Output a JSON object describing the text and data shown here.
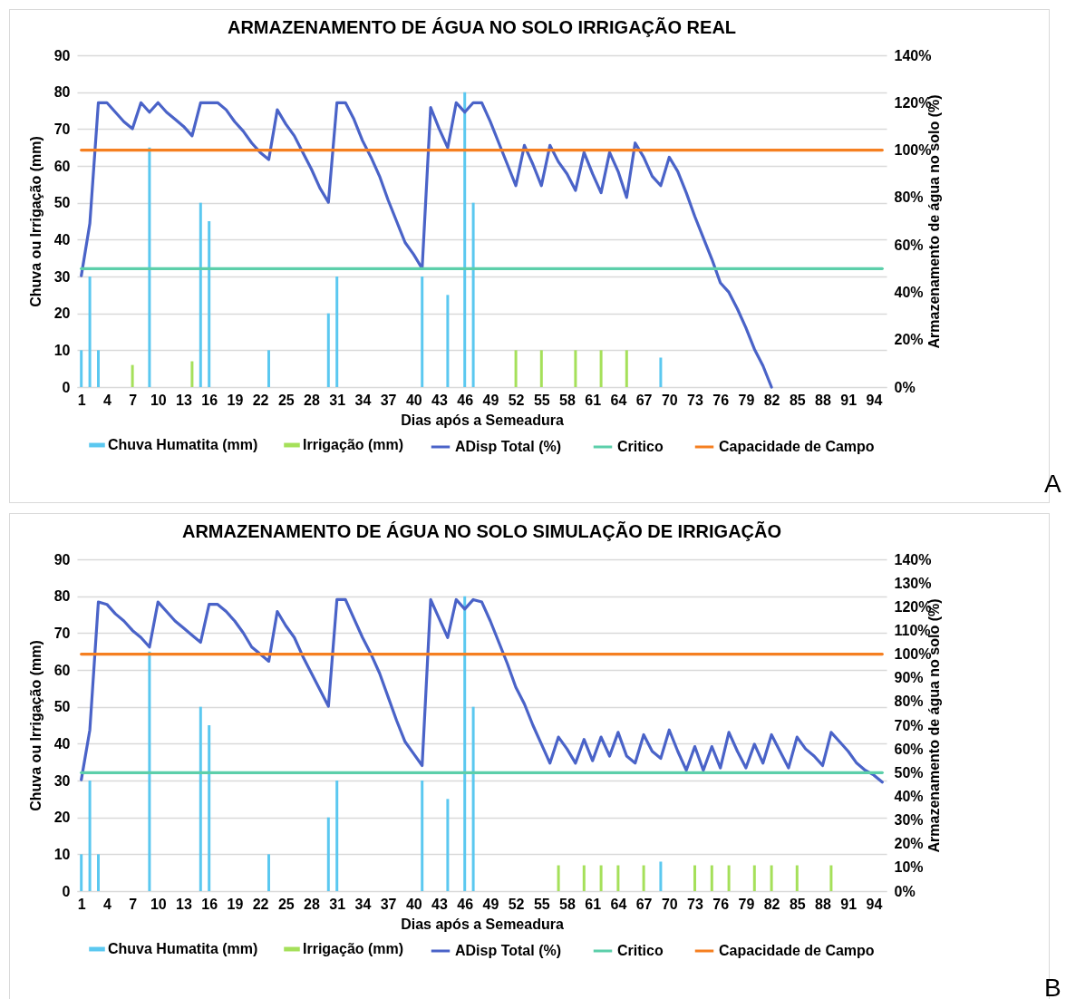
{
  "chart_data": [
    {
      "type": "bar",
      "title": "ARMAZENAMENTO DE ÁGUA  NO SOLO IRRIGAÇÃO REAL",
      "xlabel": "Dias após a Semeadura",
      "ylabel": "Chuva ou Irrigação (mm)",
      "y2label": "Armazenamento de água no solo (%)",
      "xlim": [
        0.5,
        95.5
      ],
      "xticks": [
        1,
        4,
        7,
        10,
        13,
        16,
        19,
        22,
        25,
        28,
        31,
        34,
        37,
        40,
        43,
        46,
        49,
        52,
        55,
        58,
        61,
        64,
        67,
        70,
        73,
        76,
        79,
        82,
        85,
        88,
        91,
        94
      ],
      "ylim": [
        0,
        90
      ],
      "yticks": [
        0,
        10,
        20,
        30,
        40,
        50,
        60,
        70,
        80,
        90
      ],
      "y2lim": [
        0,
        140
      ],
      "y2ticks": [
        {
          "value": 0,
          "label": "0%"
        },
        {
          "value": 20,
          "label": "20%"
        },
        {
          "value": 40,
          "label": "40%"
        },
        {
          "value": 60,
          "label": "60%"
        },
        {
          "value": 80,
          "label": "80%"
        },
        {
          "value": 100,
          "label": "100%"
        },
        {
          "value": 120,
          "label": "120%"
        },
        {
          "value": 140,
          "label": "140%"
        }
      ],
      "grid": "y",
      "legend": "bottom",
      "annotations": [
        "A"
      ],
      "series": [
        {
          "name": "Chuva Humatita (mm)",
          "type": "bar",
          "color": "#5bc8f0",
          "x": [
            1,
            2,
            3,
            9,
            15,
            16,
            23,
            30,
            31,
            41,
            44,
            46,
            47,
            69
          ],
          "values": [
            10,
            30,
            10,
            65,
            50,
            45,
            10,
            20,
            30,
            30,
            25,
            80,
            50,
            8
          ]
        },
        {
          "name": "Irrigação (mm)",
          "type": "bar",
          "color": "#a5e05a",
          "x": [
            7,
            14,
            52,
            55,
            59,
            62,
            65
          ],
          "values": [
            6,
            7,
            10,
            10,
            10,
            10,
            10
          ]
        },
        {
          "name": "ADisp Total (%)",
          "type": "line",
          "axis": "y2",
          "color": "#4a63c8",
          "x": [
            1,
            2,
            3,
            4,
            5,
            6,
            7,
            8,
            9,
            10,
            11,
            12,
            13,
            14,
            15,
            16,
            17,
            18,
            19,
            20,
            21,
            22,
            23,
            24,
            25,
            26,
            27,
            28,
            29,
            30,
            31,
            32,
            33,
            34,
            35,
            36,
            37,
            38,
            39,
            40,
            41,
            42,
            43,
            44,
            45,
            46,
            47,
            48,
            49,
            50,
            51,
            52,
            53,
            54,
            55,
            56,
            57,
            58,
            59,
            60,
            61,
            62,
            63,
            64,
            65,
            66,
            67,
            68,
            69,
            70,
            71,
            72,
            73,
            74,
            75,
            76,
            77,
            78,
            79,
            80,
            81,
            82
          ],
          "values": [
            47,
            69,
            120,
            120,
            116,
            112,
            109,
            120,
            116,
            120,
            116,
            113,
            110,
            106,
            120,
            120,
            120,
            117,
            112,
            108,
            103,
            99,
            96,
            117,
            111,
            106,
            99,
            92,
            84,
            78,
            120,
            120,
            113,
            104,
            97,
            89,
            79,
            70,
            61,
            56,
            50,
            118,
            109,
            101,
            120,
            116,
            120,
            120,
            112,
            103,
            94,
            85,
            102,
            94,
            85,
            102,
            95,
            90,
            83,
            99,
            90,
            82,
            99,
            91,
            80,
            103,
            97,
            89,
            85,
            97,
            91,
            82,
            72,
            63,
            54,
            44,
            40,
            33,
            25,
            16,
            9,
            0
          ]
        },
        {
          "name": "Critico",
          "type": "line",
          "axis": "y2",
          "color": "#5ccfaa",
          "x": [
            1,
            95
          ],
          "values": [
            50,
            50
          ]
        },
        {
          "name": "Capacidade de Campo",
          "type": "line",
          "axis": "y2",
          "color": "#f57f20",
          "x": [
            1,
            95
          ],
          "values": [
            100,
            100
          ]
        }
      ]
    },
    {
      "type": "bar",
      "title": "ARMAZENAMENTO DE ÁGUA  NO SOLO SIMULAÇÃO DE IRRIGAÇÃO",
      "xlabel": "Dias após a Semeadura",
      "ylabel": "Chuva ou Irrigação (mm)",
      "y2label": "Armazenamento de água no solo (%)",
      "xlim": [
        0.5,
        95.5
      ],
      "xticks": [
        1,
        4,
        7,
        10,
        13,
        16,
        19,
        22,
        25,
        28,
        31,
        34,
        37,
        40,
        43,
        46,
        49,
        52,
        55,
        58,
        61,
        64,
        67,
        70,
        73,
        76,
        79,
        82,
        85,
        88,
        91,
        94
      ],
      "ylim": [
        0,
        90
      ],
      "yticks": [
        0,
        10,
        20,
        30,
        40,
        50,
        60,
        70,
        80,
        90
      ],
      "y2lim": [
        0,
        140
      ],
      "y2ticks": [
        {
          "value": 0,
          "label": "0%"
        },
        {
          "value": 10,
          "label": "10%"
        },
        {
          "value": 20,
          "label": "20%"
        },
        {
          "value": 30,
          "label": "30%"
        },
        {
          "value": 40,
          "label": "40%"
        },
        {
          "value": 50,
          "label": "50%"
        },
        {
          "value": 60,
          "label": "60%"
        },
        {
          "value": 70,
          "label": "70%"
        },
        {
          "value": 80,
          "label": "80%"
        },
        {
          "value": 90,
          "label": "90%"
        },
        {
          "value": 100,
          "label": "100%"
        },
        {
          "value": 110,
          "label": "110%"
        },
        {
          "value": 120,
          "label": "120%"
        },
        {
          "value": 130,
          "label": "130%"
        },
        {
          "value": 140,
          "label": "140%"
        }
      ],
      "grid": "y",
      "legend": "bottom",
      "annotations": [
        "B"
      ],
      "series": [
        {
          "name": "Chuva Humatita (mm)",
          "type": "bar",
          "color": "#5bc8f0",
          "x": [
            1,
            2,
            3,
            9,
            15,
            16,
            23,
            30,
            31,
            41,
            44,
            46,
            47,
            69
          ],
          "values": [
            10,
            30,
            10,
            65,
            50,
            45,
            10,
            20,
            30,
            30,
            25,
            80,
            50,
            8
          ]
        },
        {
          "name": "Irrigação (mm)",
          "type": "bar",
          "color": "#a5e05a",
          "x": [
            57,
            60,
            62,
            64,
            67,
            73,
            75,
            77,
            80,
            82,
            85,
            89
          ],
          "values": [
            7,
            7,
            7,
            7,
            7,
            7,
            7,
            7,
            7,
            7,
            7,
            7
          ]
        },
        {
          "name": "ADisp Total (%)",
          "type": "line",
          "axis": "y2",
          "color": "#4a63c8",
          "x": [
            1,
            2,
            3,
            4,
            5,
            6,
            7,
            8,
            9,
            10,
            11,
            12,
            13,
            14,
            15,
            16,
            17,
            18,
            19,
            20,
            21,
            22,
            23,
            24,
            25,
            26,
            27,
            28,
            29,
            30,
            31,
            32,
            33,
            34,
            35,
            36,
            37,
            38,
            39,
            40,
            41,
            42,
            43,
            44,
            45,
            46,
            47,
            48,
            49,
            50,
            51,
            52,
            53,
            54,
            55,
            56,
            57,
            58,
            59,
            60,
            61,
            62,
            63,
            64,
            65,
            66,
            67,
            68,
            69,
            70,
            71,
            72,
            73,
            74,
            75,
            76,
            77,
            78,
            79,
            80,
            81,
            82,
            83,
            84,
            85,
            86,
            87,
            88,
            89,
            90,
            91,
            92,
            93,
            94,
            95
          ],
          "values": [
            47,
            68,
            122,
            121,
            117,
            114,
            110,
            107,
            103,
            122,
            118,
            114,
            111,
            108,
            105,
            121,
            121,
            118,
            114,
            109,
            103,
            100,
            97,
            118,
            112,
            107,
            99,
            92,
            85,
            78,
            123,
            123,
            115,
            107,
            100,
            92,
            82,
            72,
            63,
            58,
            53,
            123,
            115,
            107,
            123,
            119,
            123,
            122,
            114,
            105,
            96,
            86,
            79,
            70,
            62,
            54,
            65,
            60,
            54,
            64,
            55,
            65,
            57,
            67,
            57,
            54,
            66,
            59,
            56,
            68,
            59,
            51,
            61,
            51,
            61,
            52,
            67,
            59,
            52,
            62,
            54,
            66,
            59,
            52,
            65,
            60,
            57,
            53,
            67,
            63,
            59,
            54,
            51,
            49,
            46
          ]
        },
        {
          "name": "Critico",
          "type": "line",
          "axis": "y2",
          "color": "#5ccfaa",
          "x": [
            1,
            95
          ],
          "values": [
            50,
            50
          ]
        },
        {
          "name": "Capacidade de Campo",
          "type": "line",
          "axis": "y2",
          "color": "#f57f20",
          "x": [
            1,
            95
          ],
          "values": [
            100,
            100
          ]
        }
      ]
    }
  ]
}
